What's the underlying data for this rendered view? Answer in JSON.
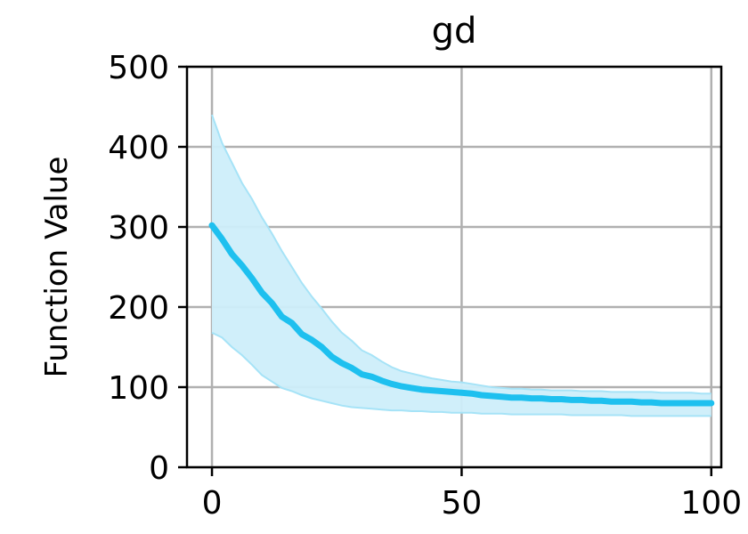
{
  "chart_data": {
    "type": "line",
    "title": "gd",
    "xlabel": "",
    "ylabel": "Function Value",
    "xlim": [
      -5,
      102
    ],
    "ylim": [
      0,
      500
    ],
    "xticks": [
      0,
      50,
      100
    ],
    "yticks": [
      0,
      100,
      200,
      300,
      400,
      500
    ],
    "grid": true,
    "legend": "none",
    "colors": {
      "line": "#1ec0ef",
      "band": "#cdeefa",
      "band_edge": "#a6e3f7",
      "grid": "#b0b0b0"
    },
    "series": [
      {
        "name": "mean",
        "x": [
          0,
          2,
          4,
          6,
          8,
          10,
          12,
          14,
          16,
          18,
          20,
          22,
          24,
          26,
          28,
          30,
          32,
          34,
          36,
          38,
          40,
          42,
          44,
          46,
          48,
          50,
          52,
          54,
          56,
          58,
          60,
          62,
          64,
          66,
          68,
          70,
          72,
          74,
          76,
          78,
          80,
          82,
          84,
          86,
          88,
          90,
          92,
          94,
          96,
          98,
          100
        ],
        "y": [
          302,
          285,
          266,
          252,
          236,
          218,
          205,
          188,
          180,
          166,
          159,
          150,
          138,
          130,
          124,
          116,
          113,
          108,
          104,
          101,
          99,
          97,
          96,
          95,
          94,
          93,
          92,
          90,
          89,
          88,
          87,
          87,
          86,
          86,
          85,
          85,
          84,
          84,
          83,
          83,
          82,
          82,
          82,
          81,
          81,
          80,
          80,
          80,
          80,
          80,
          80
        ]
      },
      {
        "name": "upper",
        "x": [
          0,
          2,
          4,
          6,
          8,
          10,
          12,
          14,
          16,
          18,
          20,
          22,
          24,
          26,
          28,
          30,
          32,
          34,
          36,
          38,
          40,
          42,
          44,
          46,
          48,
          50,
          52,
          54,
          56,
          58,
          60,
          62,
          64,
          66,
          68,
          70,
          72,
          74,
          76,
          78,
          80,
          82,
          84,
          86,
          88,
          90,
          92,
          94,
          96,
          98,
          100
        ],
        "y": [
          440,
          405,
          380,
          355,
          335,
          312,
          292,
          270,
          250,
          230,
          213,
          198,
          182,
          168,
          158,
          146,
          140,
          132,
          125,
          120,
          117,
          114,
          111,
          109,
          107,
          106,
          104,
          102,
          100,
          99,
          98,
          98,
          97,
          97,
          96,
          96,
          96,
          95,
          95,
          95,
          94,
          94,
          94,
          94,
          94,
          93,
          93,
          93,
          93,
          92,
          92
        ]
      },
      {
        "name": "lower",
        "x": [
          0,
          2,
          4,
          6,
          8,
          10,
          12,
          14,
          16,
          18,
          20,
          22,
          24,
          26,
          28,
          30,
          32,
          34,
          36,
          38,
          40,
          42,
          44,
          46,
          48,
          50,
          52,
          54,
          56,
          58,
          60,
          62,
          64,
          66,
          68,
          70,
          72,
          74,
          76,
          78,
          80,
          82,
          84,
          86,
          88,
          90,
          92,
          94,
          96,
          98,
          100
        ],
        "y": [
          168,
          162,
          150,
          140,
          128,
          115,
          107,
          99,
          95,
          90,
          86,
          83,
          80,
          77,
          75,
          74,
          73,
          72,
          71,
          71,
          70,
          70,
          69,
          69,
          68,
          68,
          68,
          67,
          67,
          67,
          66,
          66,
          66,
          66,
          66,
          66,
          65,
          65,
          65,
          65,
          65,
          65,
          64,
          64,
          64,
          64,
          64,
          64,
          64,
          64,
          64
        ]
      }
    ]
  }
}
